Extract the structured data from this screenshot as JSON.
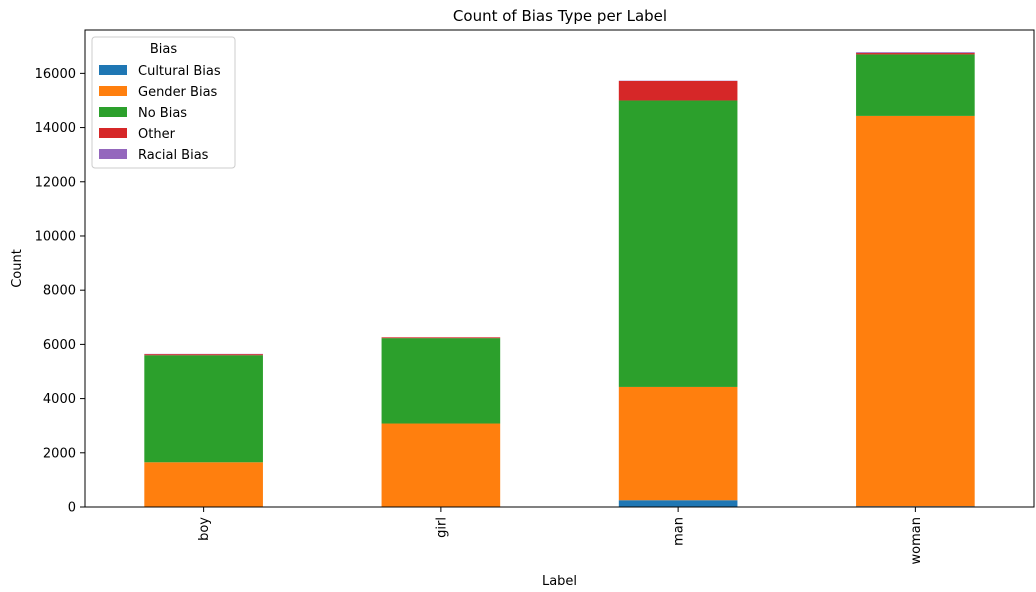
{
  "chart_data": {
    "type": "bar",
    "stacked": true,
    "title": "Count of Bias Type per Label",
    "xlabel": "Label",
    "ylabel": "Count",
    "categories": [
      "boy",
      "girl",
      "man",
      "woman"
    ],
    "ylim": [
      0,
      17600
    ],
    "yticks": [
      0,
      2000,
      4000,
      6000,
      8000,
      10000,
      12000,
      14000,
      16000
    ],
    "legend": {
      "title": "Bias",
      "position": "top-left"
    },
    "series": [
      {
        "name": "Cultural Bias",
        "color": "#1f77b4",
        "values": [
          0,
          0,
          250,
          30
        ]
      },
      {
        "name": "Gender Bias",
        "color": "#ff7f0e",
        "values": [
          1650,
          3080,
          4180,
          14400
        ]
      },
      {
        "name": "No Bias",
        "color": "#2ca02c",
        "values": [
          3950,
          3150,
          10570,
          2270
        ]
      },
      {
        "name": "Other",
        "color": "#d62728",
        "values": [
          40,
          30,
          720,
          50
        ]
      },
      {
        "name": "Racial Bias",
        "color": "#9467bd",
        "values": [
          10,
          0,
          10,
          30
        ]
      }
    ]
  }
}
